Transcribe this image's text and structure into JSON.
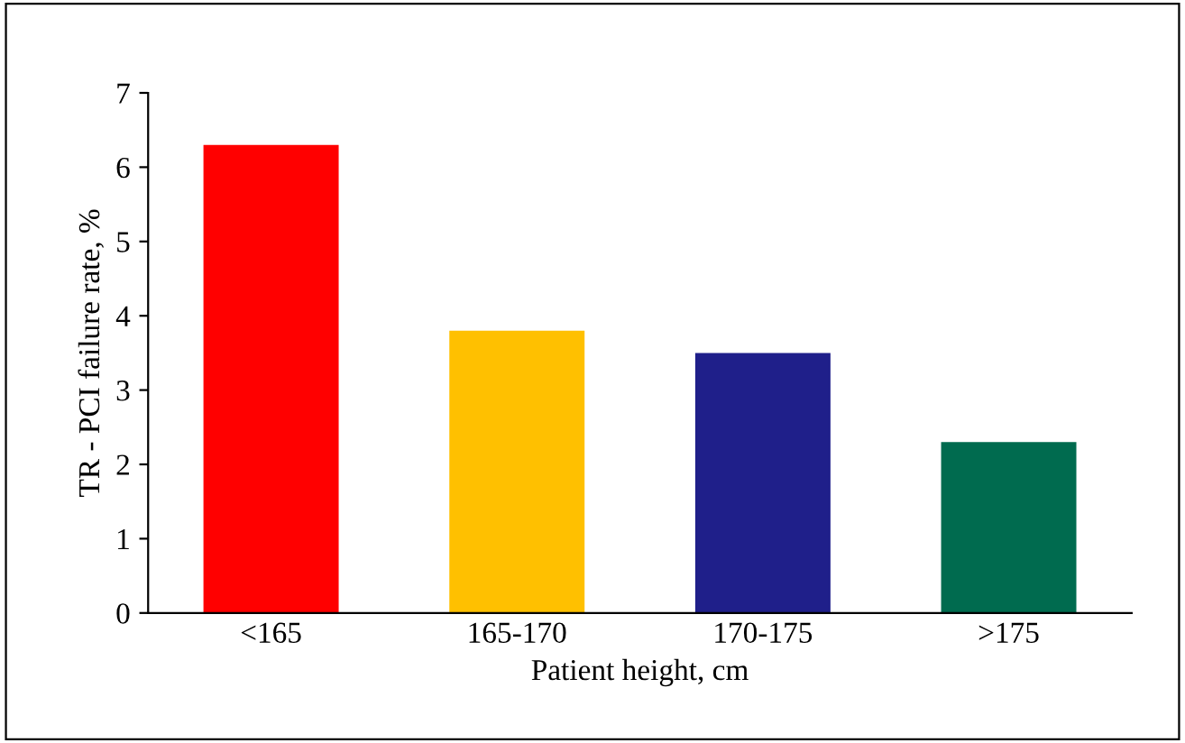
{
  "chart_data": {
    "type": "bar",
    "categories": [
      "<165",
      "165-170",
      "170-175",
      ">175"
    ],
    "values": [
      6.3,
      3.8,
      3.5,
      2.3
    ],
    "colors": [
      "#ff0000",
      "#ffc000",
      "#1f1f8a",
      "#006b4f"
    ],
    "xlabel": "Patient height, cm",
    "ylabel": "TR - PCI failure rate, %",
    "ylim": [
      0,
      7
    ],
    "yticks": [
      0,
      1,
      2,
      3,
      4,
      5,
      6,
      7
    ],
    "grid": false,
    "legend": false
  }
}
